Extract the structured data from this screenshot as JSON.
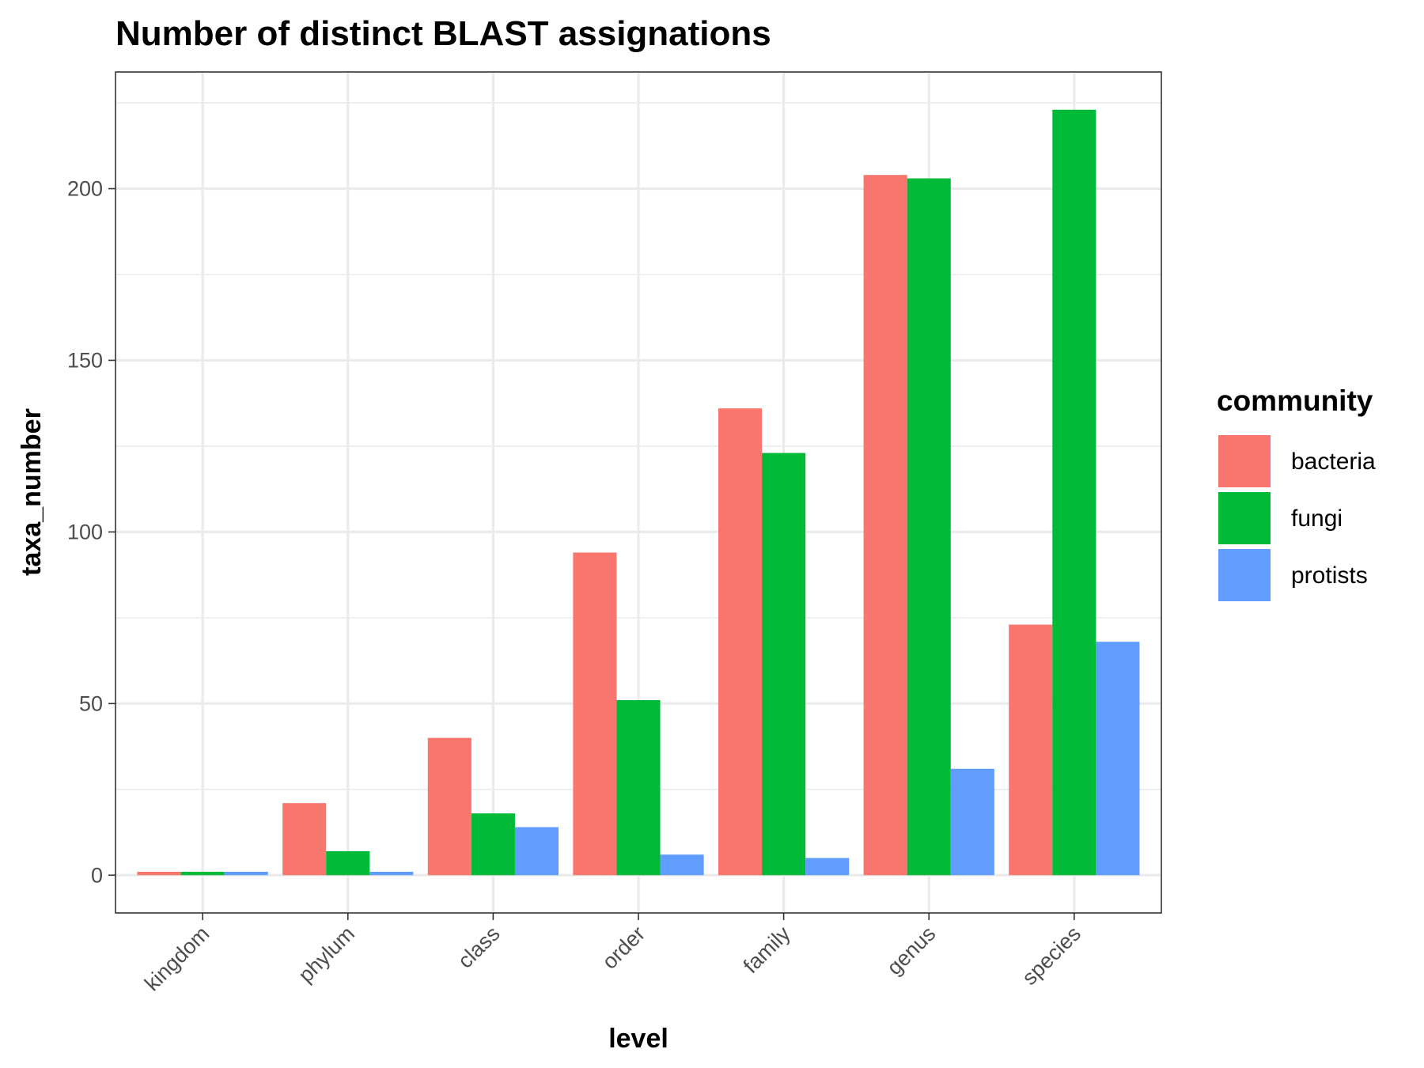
{
  "chart_data": {
    "type": "bar",
    "title": "Number of distinct BLAST assignations",
    "xlabel": "level",
    "ylabel": "taxa_number",
    "categories": [
      "kingdom",
      "phylum",
      "class",
      "order",
      "family",
      "genus",
      "species"
    ],
    "series": [
      {
        "name": "bacteria",
        "color": "#F8766D",
        "values": [
          1,
          21,
          40,
          94,
          136,
          204,
          73
        ]
      },
      {
        "name": "fungi",
        "color": "#00BA38",
        "values": [
          1,
          7,
          18,
          51,
          123,
          203,
          223
        ]
      },
      {
        "name": "protists",
        "color": "#619CFF",
        "values": [
          1,
          1,
          14,
          6,
          5,
          31,
          68
        ]
      }
    ],
    "ylim": [
      -11,
      234
    ],
    "yticks": [
      0,
      50,
      100,
      150,
      200
    ],
    "yticks_minor": [
      25,
      75,
      125,
      175,
      225
    ],
    "grid": true,
    "legend": {
      "title": "community",
      "position": "right"
    }
  }
}
